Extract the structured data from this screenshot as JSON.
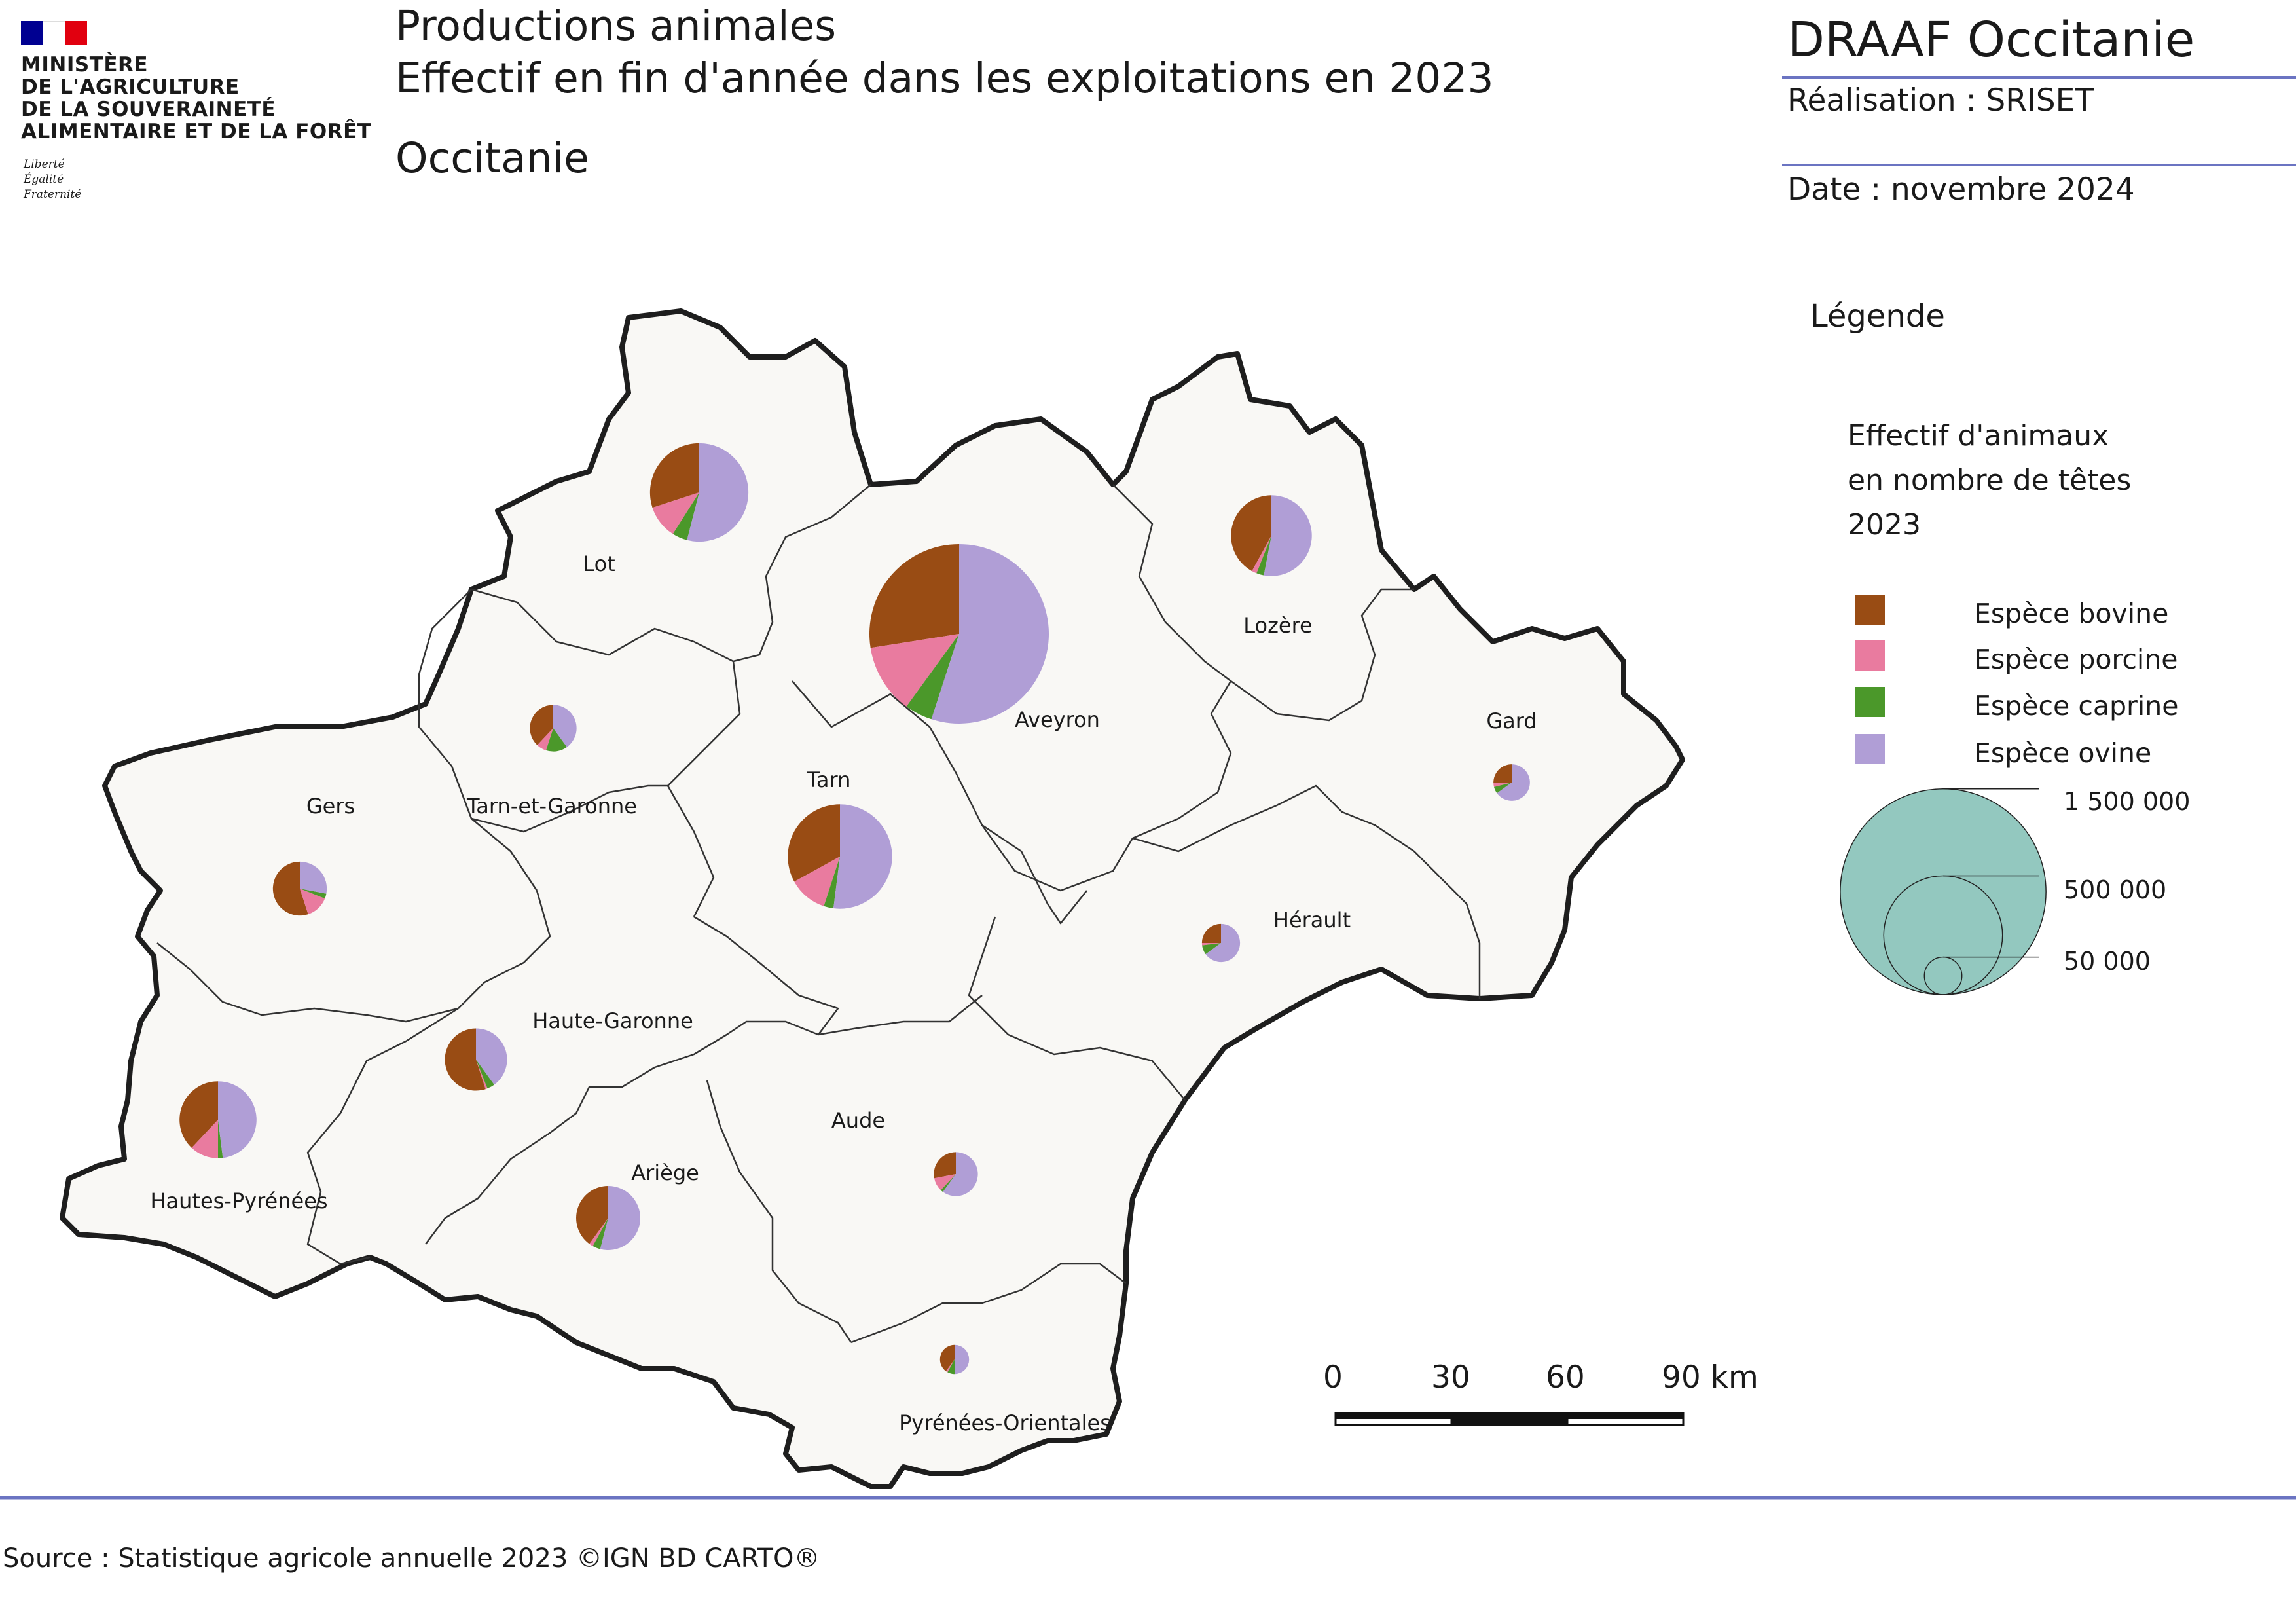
{
  "header": {
    "flag_colors": [
      "#000091",
      "#ffffff",
      "#e1000f"
    ],
    "ministry_lines": [
      "MINISTÈRE",
      "DE L'AGRICULTURE",
      "DE LA SOUVERAINETÉ",
      "ALIMENTAIRE ET DE LA FORÊT"
    ],
    "motto_lines": [
      "Liberté",
      "Égalité",
      "Fraternité"
    ],
    "title_line1": "Productions animales",
    "title_line2": "Effectif en fin d'année dans les exploitations en 2023",
    "region": "Occitanie",
    "org": "DRAAF Occitanie",
    "realisation": "Réalisation : SRISET",
    "date": "Date : novembre 2024"
  },
  "legend": {
    "title": "Légende",
    "subtitle_lines": [
      "Effectif d'animaux",
      "en nombre de têtes",
      "2023"
    ],
    "species": [
      {
        "label": "Espèce bovine",
        "color": "#994c14"
      },
      {
        "label": "Espèce porcine",
        "color": "#e97b9f"
      },
      {
        "label": "Espèce caprine",
        "color": "#4b982a"
      },
      {
        "label": "Espèce ovine",
        "color": "#b09ed6"
      }
    ],
    "proportional": {
      "color": "#93c8bf",
      "values": [
        {
          "label": "1 500 000",
          "value": 1500000
        },
        {
          "label": "500 000",
          "value": 500000
        },
        {
          "label": "50 000",
          "value": 50000
        }
      ]
    }
  },
  "scale_bar": {
    "labels": [
      "0",
      "30",
      "60",
      "90 km"
    ]
  },
  "departments": [
    {
      "name": "Lot",
      "total": 400000,
      "shares": [
        0.3,
        0.11,
        0.05,
        0.54
      ]
    },
    {
      "name": "Aveyron",
      "total": 1330000,
      "shares": [
        0.275,
        0.125,
        0.05,
        0.55
      ]
    },
    {
      "name": "Lozère",
      "total": 270000,
      "shares": [
        0.42,
        0.02,
        0.03,
        0.53
      ]
    },
    {
      "name": "Tarn-et-Garonne",
      "total": 90000,
      "shares": [
        0.38,
        0.07,
        0.15,
        0.4
      ]
    },
    {
      "name": "Tarn",
      "total": 450000,
      "shares": [
        0.33,
        0.12,
        0.03,
        0.52
      ]
    },
    {
      "name": "Gard",
      "total": 55000,
      "shares": [
        0.25,
        0.04,
        0.06,
        0.65
      ]
    },
    {
      "name": "Gers",
      "total": 120000,
      "shares": [
        0.55,
        0.14,
        0.03,
        0.28
      ]
    },
    {
      "name": "Hérault",
      "total": 60000,
      "shares": [
        0.25,
        0.02,
        0.08,
        0.65
      ]
    },
    {
      "name": "Haute-Garonne",
      "total": 160000,
      "shares": [
        0.55,
        0.01,
        0.04,
        0.4
      ]
    },
    {
      "name": "Hautes-Pyrénées",
      "total": 245000,
      "shares": [
        0.38,
        0.12,
        0.02,
        0.48
      ]
    },
    {
      "name": "Ariège",
      "total": 170000,
      "shares": [
        0.4,
        0.02,
        0.04,
        0.54
      ]
    },
    {
      "name": "Aude",
      "total": 80000,
      "shares": [
        0.28,
        0.1,
        0.02,
        0.6
      ]
    },
    {
      "name": "Pyrénées-Orientales",
      "total": 35000,
      "shares": [
        0.4,
        0.02,
        0.08,
        0.5
      ]
    }
  ],
  "source": "Source : Statistique agricole annuelle 2023 ©IGN BD CARTO®"
}
